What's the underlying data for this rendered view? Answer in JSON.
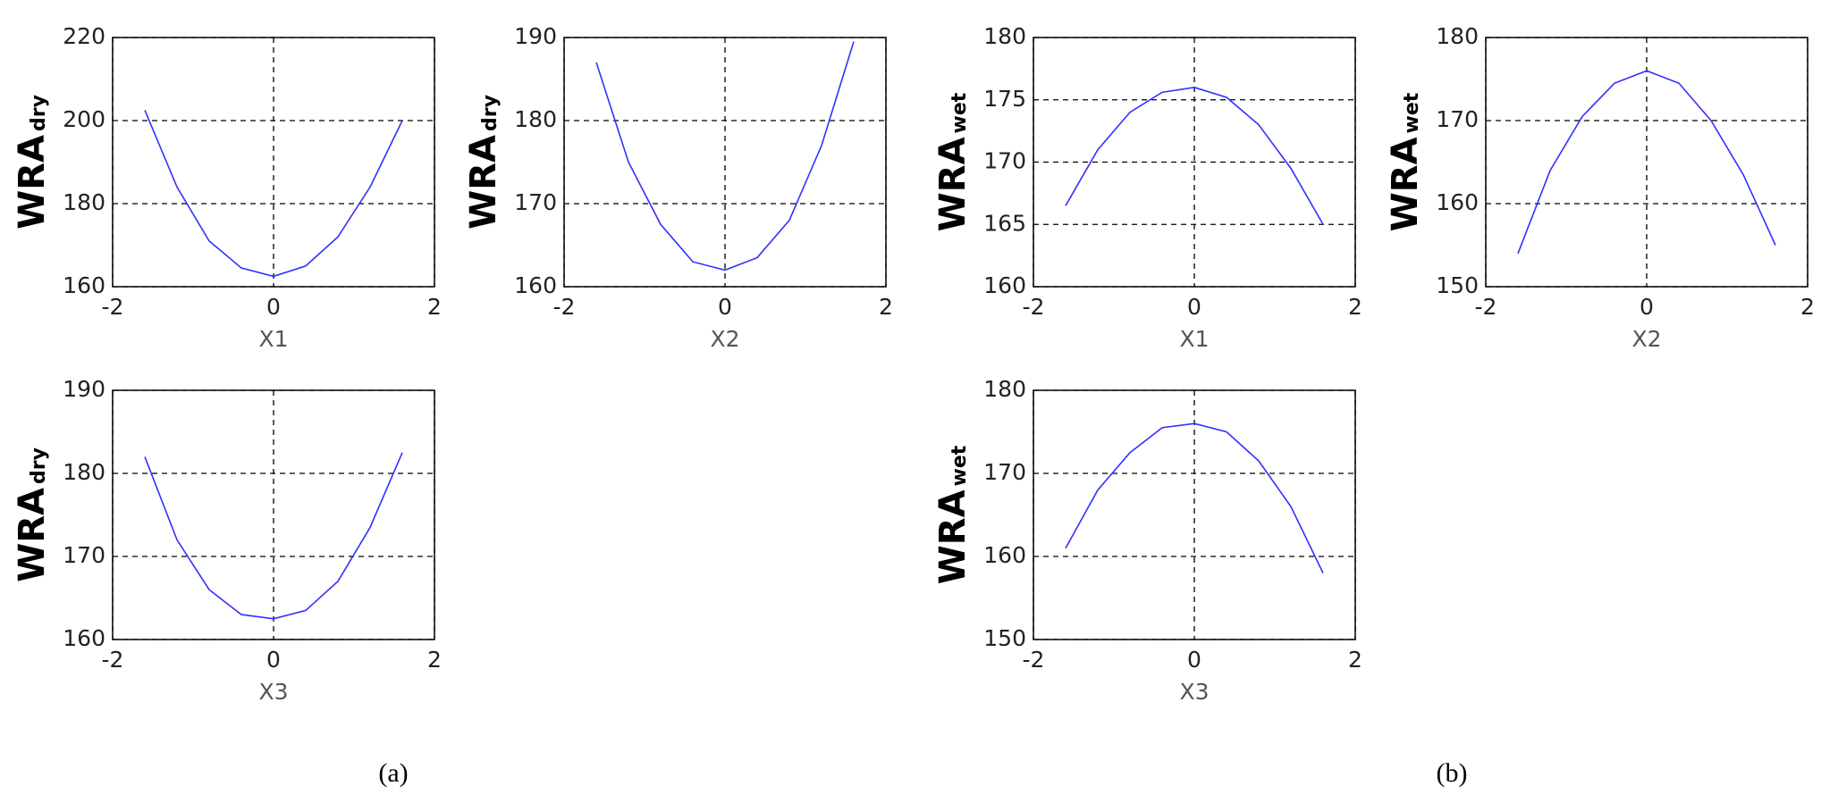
{
  "chart_data": [
    {
      "type": "line",
      "xlabel": "X1",
      "ylabel": "WRA",
      "ylabel_subscript": "dry",
      "x": [
        -1.6,
        -1.2,
        -0.8,
        -0.4,
        0,
        0.4,
        0.8,
        1.2,
        1.6
      ],
      "series": [
        {
          "color": "#3030ff",
          "values": [
            202.5,
            184,
            171,
            164.5,
            162.5,
            165,
            172,
            184,
            200
          ]
        }
      ],
      "xlim": [
        -2,
        2
      ],
      "xticks": [
        -2,
        0,
        2
      ],
      "ylim": [
        160,
        220
      ],
      "yticks": [
        160,
        180,
        200,
        220
      ],
      "grid": true
    },
    {
      "type": "line",
      "xlabel": "X2",
      "ylabel": "WRA",
      "ylabel_subscript": "dry",
      "x": [
        -1.6,
        -1.2,
        -0.8,
        -0.4,
        0,
        0.4,
        0.8,
        1.2,
        1.6
      ],
      "series": [
        {
          "color": "#3030ff",
          "values": [
            187,
            175,
            167.5,
            163,
            162,
            163.5,
            168,
            177,
            189.5
          ]
        }
      ],
      "xlim": [
        -2,
        2
      ],
      "xticks": [
        -2,
        0,
        2
      ],
      "ylim": [
        160,
        190
      ],
      "yticks": [
        160,
        170,
        180,
        190
      ],
      "grid": true
    },
    {
      "type": "line",
      "xlabel": "X3",
      "ylabel": "WRA",
      "ylabel_subscript": "dry",
      "x": [
        -1.6,
        -1.2,
        -0.8,
        -0.4,
        0,
        0.4,
        0.8,
        1.2,
        1.6
      ],
      "series": [
        {
          "color": "#3030ff",
          "values": [
            182,
            172,
            166,
            163,
            162.5,
            163.5,
            167,
            173.5,
            182.5
          ]
        }
      ],
      "xlim": [
        -2,
        2
      ],
      "xticks": [
        -2,
        0,
        2
      ],
      "ylim": [
        160,
        190
      ],
      "yticks": [
        160,
        170,
        180,
        190
      ],
      "grid": true
    },
    {
      "type": "line",
      "xlabel": "X1",
      "ylabel": "WRA",
      "ylabel_subscript": "wet",
      "x": [
        -1.6,
        -1.2,
        -0.8,
        -0.4,
        0,
        0.4,
        0.8,
        1.2,
        1.6
      ],
      "series": [
        {
          "color": "#3030ff",
          "values": [
            166.5,
            171,
            174,
            175.6,
            176,
            175.2,
            173,
            169.5,
            165
          ]
        }
      ],
      "xlim": [
        -2,
        2
      ],
      "xticks": [
        -2,
        0,
        2
      ],
      "ylim": [
        160,
        180
      ],
      "yticks": [
        160,
        165,
        170,
        175,
        180
      ],
      "grid": true
    },
    {
      "type": "line",
      "xlabel": "X2",
      "ylabel": "WRA",
      "ylabel_subscript": "wet",
      "x": [
        -1.6,
        -1.2,
        -0.8,
        -0.4,
        0,
        0.4,
        0.8,
        1.2,
        1.6
      ],
      "series": [
        {
          "color": "#3030ff",
          "values": [
            154,
            164,
            170.5,
            174.5,
            176,
            174.5,
            170,
            163.5,
            155
          ]
        }
      ],
      "xlim": [
        -2,
        2
      ],
      "xticks": [
        -2,
        0,
        2
      ],
      "ylim": [
        150,
        180
      ],
      "yticks": [
        150,
        160,
        170,
        180
      ],
      "grid": true
    },
    {
      "type": "line",
      "xlabel": "X3",
      "ylabel": "WRA",
      "ylabel_subscript": "wet",
      "x": [
        -1.6,
        -1.2,
        -0.8,
        -0.4,
        0,
        0.4,
        0.8,
        1.2,
        1.6
      ],
      "series": [
        {
          "color": "#3030ff",
          "values": [
            161,
            168,
            172.5,
            175.5,
            176,
            175,
            171.5,
            166,
            158
          ]
        }
      ],
      "xlim": [
        -2,
        2
      ],
      "xticks": [
        -2,
        0,
        2
      ],
      "ylim": [
        150,
        180
      ],
      "yticks": [
        150,
        160,
        170,
        180
      ],
      "grid": true
    }
  ],
  "panel_labels": [
    "(a)",
    "(b)"
  ]
}
